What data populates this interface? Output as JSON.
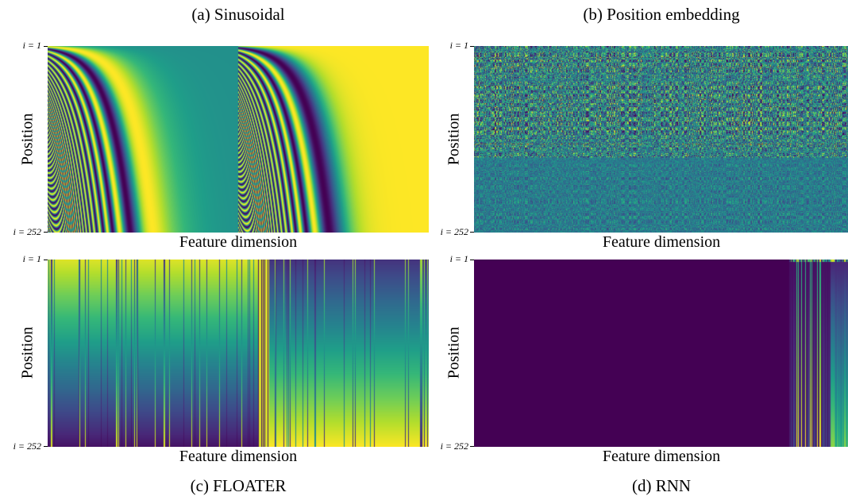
{
  "figure": {
    "panels": [
      {
        "caption": "(a) Sinusoidal",
        "xlabel": "Feature dimension",
        "ylabel": "Position",
        "ytick_top": "i = 1",
        "ytick_bottom": "i = 252",
        "pattern": "sinusoidal"
      },
      {
        "caption": "(b) Position embedding",
        "xlabel": "Feature dimension",
        "ylabel": "Position",
        "ytick_top": "i = 1",
        "ytick_bottom": "i = 252",
        "pattern": "learned"
      },
      {
        "caption": "(c) FLOATER",
        "xlabel": "Feature dimension",
        "ylabel": "Position",
        "ytick_top": "i = 1",
        "ytick_bottom": "i = 252",
        "pattern": "floater"
      },
      {
        "caption": "(d) RNN",
        "xlabel": "Feature dimension",
        "ylabel": "Position",
        "ytick_top": "i = 1",
        "ytick_bottom": "i = 252",
        "pattern": "rnn"
      }
    ]
  },
  "chart_data": [
    {
      "type": "heatmap",
      "title": "(a) Sinusoidal",
      "xlabel": "Feature dimension",
      "ylabel": "Position",
      "y_ticks": [
        "i = 1",
        "i = 252"
      ],
      "y_range": [
        1,
        252
      ],
      "colormap": "viridis"
    },
    {
      "type": "heatmap",
      "title": "(b) Position embedding",
      "xlabel": "Feature dimension",
      "ylabel": "Position",
      "y_ticks": [
        "i = 1",
        "i = 252"
      ],
      "y_range": [
        1,
        252
      ],
      "colormap": "viridis"
    },
    {
      "type": "heatmap",
      "title": "(c) FLOATER",
      "xlabel": "Feature dimension",
      "ylabel": "Position",
      "y_ticks": [
        "i = 1",
        "i = 252"
      ],
      "y_range": [
        1,
        252
      ],
      "colormap": "viridis"
    },
    {
      "type": "heatmap",
      "title": "(d) RNN",
      "xlabel": "Feature dimension",
      "ylabel": "Position",
      "y_ticks": [
        "i = 1",
        "i = 252"
      ],
      "y_range": [
        1,
        252
      ],
      "colormap": "viridis"
    }
  ]
}
